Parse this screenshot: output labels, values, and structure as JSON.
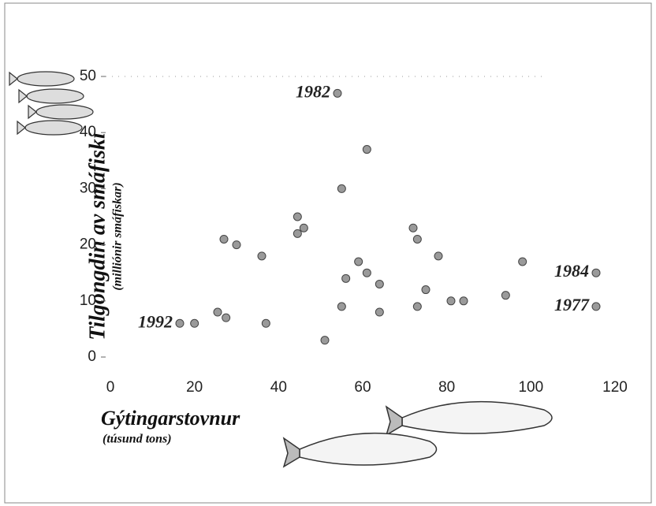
{
  "chart_data": {
    "type": "scatter",
    "x_label": "Gýtingarstovnur",
    "x_sublabel": "(túsund tons)",
    "y_label": "Tilgongdin av smáfiskí",
    "y_sublabel": "(milliónir smáfiskar)",
    "color": "#9a9a9a",
    "x": [
      54,
      61,
      55,
      44.5,
      44.5,
      46,
      27,
      30,
      36,
      72,
      73,
      78,
      59,
      61,
      56,
      64,
      75,
      55,
      64,
      73,
      81,
      84,
      94,
      98,
      115.5,
      115.5,
      25.5,
      27.5,
      37,
      20,
      16.5,
      51
    ],
    "values": [
      47,
      37,
      30,
      25,
      22,
      23,
      21,
      20,
      18,
      23,
      21,
      18,
      17,
      15,
      14,
      13,
      12,
      9,
      8,
      9,
      10,
      10,
      11,
      17,
      15,
      9,
      8,
      7,
      6,
      6,
      6,
      3
    ],
    "point_labels": [
      "1982",
      null,
      null,
      null,
      null,
      null,
      null,
      null,
      null,
      null,
      null,
      null,
      null,
      null,
      null,
      null,
      null,
      null,
      null,
      null,
      null,
      null,
      null,
      null,
      "1984",
      "1977",
      null,
      null,
      null,
      null,
      "1992",
      null
    ],
    "xlim": [
      0,
      120
    ],
    "xticks": [
      0,
      20,
      40,
      60,
      80,
      100,
      120
    ],
    "ylim": [
      0,
      50
    ],
    "yticks": [
      0,
      10,
      20,
      30,
      40,
      50
    ]
  }
}
